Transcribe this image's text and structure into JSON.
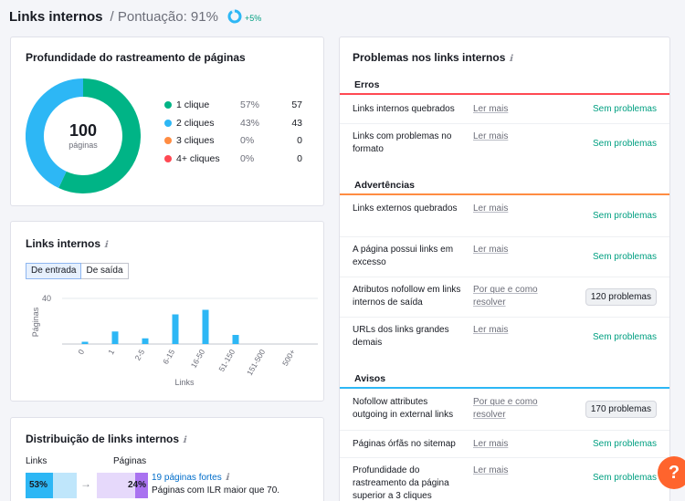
{
  "header": {
    "title": "Links internos",
    "subtitle": "/ Pontuação: 91%",
    "score_fraction": 0.91,
    "delta": "+5%"
  },
  "depth_card": {
    "title": "Profundidade do rastreamento de páginas",
    "center_value": "100",
    "center_label": "páginas",
    "legend": [
      {
        "label": "1 clique",
        "pct": "57%",
        "value": "57",
        "color": "#00b486"
      },
      {
        "label": "2 cliques",
        "pct": "43%",
        "value": "43",
        "color": "#2db7f5"
      },
      {
        "label": "3 cliques",
        "pct": "0%",
        "value": "0",
        "color": "#ff8c42"
      },
      {
        "label": "4+ cliques",
        "pct": "0%",
        "value": "0",
        "color": "#ff4953"
      }
    ]
  },
  "links_card": {
    "title": "Links internos",
    "info_icon": "ℹ",
    "toggle": {
      "incoming": "De entrada",
      "outgoing": "De saída"
    },
    "chart_data": {
      "type": "bar",
      "categories": [
        "0",
        "1",
        "2-5",
        "6-15",
        "16-50",
        "51-150",
        "151-500",
        "500+"
      ],
      "values": [
        2,
        11,
        5,
        26,
        30,
        8,
        0,
        0
      ],
      "xlabel": "Links",
      "ylabel": "Páginas",
      "ylim": [
        0,
        40
      ],
      "yticks": [
        "40",
        "20",
        "0"
      ],
      "color": "#2db7f5",
      "grid": true
    }
  },
  "dist_card": {
    "title": "Distribuição de links internos",
    "info_icon": "ℹ",
    "links_label": "Links",
    "pages_label": "Páginas",
    "links_pct": "53%",
    "pages_pct": "24%",
    "arrow": "→",
    "strong_link": "19 páginas fortes",
    "strong_desc": "Páginas com ILR maior que 70."
  },
  "issues_card": {
    "title": "Problemas nos links internos",
    "info_icon": "ℹ",
    "sections": [
      {
        "name": "Erros",
        "color": "#ff4953",
        "rows": [
          {
            "label": "Links internos quebrados",
            "link": "Ler mais",
            "status": "Sem problemas"
          },
          {
            "label": "Links com problemas no formato",
            "link": "Ler mais",
            "status": "Sem problemas"
          }
        ]
      },
      {
        "name": "Advertências",
        "color": "#ff8c42",
        "rows": [
          {
            "label": "Links externos quebrados",
            "link": "Ler mais",
            "status": "Sem problemas"
          },
          {
            "label": "A página possui links em excesso",
            "link": "Ler mais",
            "status": "Sem problemas"
          },
          {
            "label": "Atributos nofollow em links internos de saída",
            "link": "Por que e como resolver",
            "badge": "120 problemas"
          },
          {
            "label": "URLs dos links grandes demais",
            "link": "Ler mais",
            "status": "Sem problemas"
          }
        ]
      },
      {
        "name": "Avisos",
        "color": "#2db7f5",
        "rows": [
          {
            "label": "Nofollow attributes outgoing in external links",
            "link": "Por que e como resolver",
            "badge": "170 problemas"
          },
          {
            "label": "Páginas órfãs no sitemap",
            "link": "Ler mais",
            "status": "Sem problemas"
          },
          {
            "label": "Profundidade do rastreamento da página superior a 3 cliques",
            "link": "Ler mais",
            "status": "Sem problemas"
          }
        ]
      }
    ]
  },
  "help_button": "?"
}
